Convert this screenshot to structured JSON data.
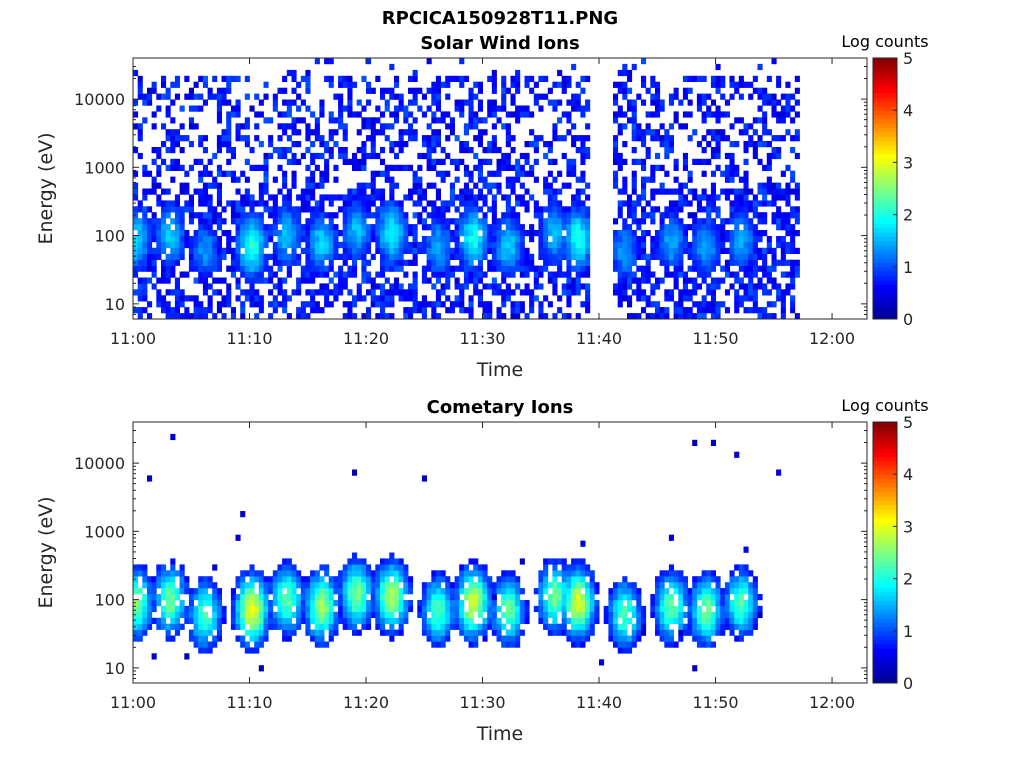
{
  "figure_title": "RPCICA150928T11.PNG",
  "colormap": [
    "#00008f",
    "#0000ff",
    "#0080ff",
    "#00ffff",
    "#80ff80",
    "#ffff00",
    "#ff8000",
    "#ff0000",
    "#800000"
  ],
  "chart_data": [
    {
      "type": "heatmap",
      "title": "Solar Wind Ions",
      "xlabel": "Time",
      "ylabel": "Energy (eV)",
      "y_scale": "log",
      "xlim": [
        "11:00",
        "12:03"
      ],
      "ylim": [
        6,
        40000
      ],
      "x_ticks": [
        "11:00",
        "11:10",
        "11:20",
        "11:30",
        "11:40",
        "11:50",
        "12:00"
      ],
      "y_ticks": [
        "10",
        "100",
        "1000",
        "10000"
      ],
      "y_tick_values": [
        10,
        100,
        1000,
        10000
      ],
      "colorbar": {
        "label": "Log counts",
        "range": [
          0,
          5
        ],
        "ticks": [
          "0",
          "1",
          "2",
          "3",
          "4",
          "5"
        ]
      },
      "data_gap": [
        "11:39",
        "11:41"
      ],
      "data_end": "11:57",
      "peak_energies_eV": [
        90,
        100,
        60,
        70,
        100,
        80,
        120,
        110,
        70,
        90,
        70,
        110,
        90,
        60,
        80,
        70,
        90
      ],
      "peak_times": [
        "11:00",
        "11:03",
        "11:06",
        "11:10",
        "11:13",
        "11:16",
        "11:19",
        "11:22",
        "11:26",
        "11:29",
        "11:32",
        "11:36",
        "11:38",
        "11:42",
        "11:46",
        "11:49",
        "11:52"
      ],
      "peak_log_counts": [
        1.6,
        1.5,
        1.2,
        1.9,
        1.4,
        1.5,
        1.4,
        1.7,
        1.3,
        1.8,
        1.5,
        1.4,
        1.8,
        1.2,
        1.3,
        1.3,
        1.3
      ],
      "background_log_counts": 0.3
    },
    {
      "type": "heatmap",
      "title": "Cometary Ions",
      "xlabel": "Time",
      "ylabel": "Energy (eV)",
      "y_scale": "log",
      "xlim": [
        "11:00",
        "12:03"
      ],
      "ylim": [
        6,
        40000
      ],
      "x_ticks": [
        "11:00",
        "11:10",
        "11:20",
        "11:30",
        "11:40",
        "11:50",
        "12:00"
      ],
      "y_ticks": [
        "10",
        "100",
        "1000",
        "10000"
      ],
      "y_tick_values": [
        10,
        100,
        1000,
        10000
      ],
      "colorbar": {
        "label": "Log counts",
        "range": [
          0,
          5
        ],
        "ticks": [
          "0",
          "1",
          "2",
          "3",
          "4",
          "5"
        ]
      },
      "data_end": "11:57",
      "peak_energies_eV": [
        90,
        100,
        60,
        70,
        100,
        80,
        120,
        110,
        70,
        90,
        70,
        110,
        90,
        60,
        80,
        70,
        90
      ],
      "peak_times": [
        "11:00",
        "11:03",
        "11:06",
        "11:10",
        "11:13",
        "11:16",
        "11:19",
        "11:22",
        "11:26",
        "11:29",
        "11:32",
        "11:36",
        "11:38",
        "11:42",
        "11:46",
        "11:49",
        "11:52"
      ],
      "peak_log_counts": [
        2.4,
        2.3,
        2.1,
        2.9,
        2.2,
        2.5,
        2.3,
        2.6,
        2.1,
        2.8,
        2.2,
        2.3,
        2.8,
        2.1,
        2.2,
        2.3,
        2.1
      ],
      "background_log_counts": 0.0
    }
  ]
}
